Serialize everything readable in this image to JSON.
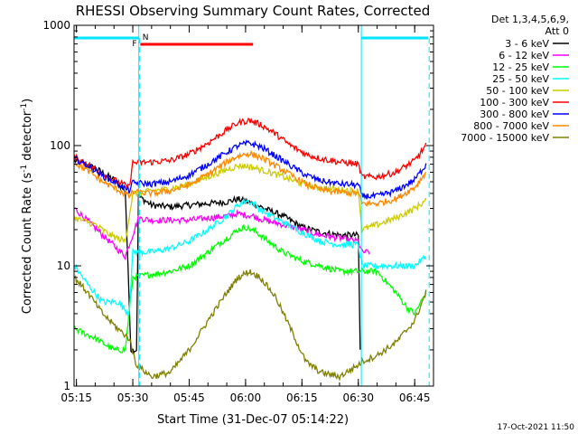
{
  "chart_data": {
    "type": "line",
    "title": "RHESSI Observing Summary Count Rates, Corrected",
    "ylabel_main": "Corrected Count Rate (s",
    "ylabel_exp1": "-1",
    "ylabel_mid": " detector",
    "ylabel_exp2": "-1",
    "ylabel_end": ")",
    "xlabel": "Start Time (31-Dec-07 05:14:22)",
    "timestamp": "17-Oct-2021 11:50",
    "y_scale": "log",
    "ylim": [
      1,
      1000
    ],
    "xlim_minutes": [
      314.37,
      410.0
    ],
    "y_ticks": [
      {
        "value": 1,
        "label": "1"
      },
      {
        "value": 10,
        "label": "10"
      },
      {
        "value": 100,
        "label": "100"
      },
      {
        "value": 1000,
        "label": "1000"
      }
    ],
    "x_ticks": [
      {
        "minute": 315,
        "label": "05:15"
      },
      {
        "minute": 330,
        "label": "05:30"
      },
      {
        "minute": 345,
        "label": "05:45"
      },
      {
        "minute": 360,
        "label": "06:00"
      },
      {
        "minute": 375,
        "label": "06:15"
      },
      {
        "minute": 390,
        "label": "06:30"
      },
      {
        "minute": 405,
        "label": "06:45"
      }
    ],
    "legend_header": [
      "Det 1,3,4,5,6,9,",
      "Att 0"
    ],
    "annotations": {
      "night_label": "N",
      "flare_label": "F",
      "night_before_minutes": [
        314.4,
        331.6
      ],
      "night_after_minutes": [
        390.8,
        408.6
      ],
      "flare_minutes": [
        332.0,
        362.0
      ],
      "cyan_line_minutes": [
        331.6,
        390.8
      ],
      "dashed_line_minutes": [
        331.6,
        408.6
      ]
    },
    "series": [
      {
        "name": "3 - 6 keV",
        "color": "#000000",
        "points": [
          [
            314.5,
            75
          ],
          [
            320,
            65
          ],
          [
            325,
            52
          ],
          [
            328,
            42
          ],
          [
            329.5,
            2
          ],
          [
            331,
            2
          ],
          [
            331.5,
            38
          ],
          [
            335,
            32
          ],
          [
            340,
            31
          ],
          [
            345,
            32
          ],
          [
            350,
            33
          ],
          [
            355,
            34
          ],
          [
            358,
            36
          ],
          [
            362,
            33
          ],
          [
            365,
            30
          ],
          [
            370,
            26
          ],
          [
            375,
            21
          ],
          [
            380,
            19
          ],
          [
            385,
            18
          ],
          [
            390,
            18
          ],
          [
            390.5,
            2
          ]
        ]
      },
      {
        "name": "6 - 12 keV",
        "color": "#ff00ff",
        "points": [
          [
            314.5,
            30
          ],
          [
            328,
            12
          ],
          [
            331.5,
            25
          ],
          [
            335,
            24
          ],
          [
            340,
            24
          ],
          [
            345,
            24
          ],
          [
            350,
            25
          ],
          [
            355,
            26
          ],
          [
            358,
            27
          ],
          [
            362,
            26
          ],
          [
            365,
            24
          ],
          [
            370,
            22
          ],
          [
            375,
            20
          ],
          [
            380,
            18
          ],
          [
            385,
            17
          ],
          [
            390,
            16
          ],
          [
            391,
            13
          ],
          [
            393,
            13
          ]
        ]
      },
      {
        "name": "12 - 25 keV",
        "color": "#00ff00",
        "points": [
          [
            314.5,
            3
          ],
          [
            320,
            2.5
          ],
          [
            325,
            2
          ],
          [
            328,
            2
          ],
          [
            330,
            8
          ],
          [
            335,
            8.5
          ],
          [
            340,
            9
          ],
          [
            345,
            10
          ],
          [
            350,
            13
          ],
          [
            355,
            17
          ],
          [
            358,
            20
          ],
          [
            360,
            21
          ],
          [
            363,
            19
          ],
          [
            366,
            16
          ],
          [
            370,
            13
          ],
          [
            375,
            11
          ],
          [
            380,
            10
          ],
          [
            385,
            9
          ],
          [
            390,
            9
          ],
          [
            395,
            9
          ],
          [
            400,
            6
          ],
          [
            403,
            4.5
          ],
          [
            405,
            4
          ],
          [
            408,
            6
          ]
        ]
      },
      {
        "name": "25 - 50 keV",
        "color": "#00ffff",
        "points": [
          [
            314.5,
            10
          ],
          [
            318,
            7
          ],
          [
            322,
            5
          ],
          [
            326,
            5
          ],
          [
            329,
            4
          ],
          [
            330,
            13
          ],
          [
            335,
            13
          ],
          [
            340,
            14
          ],
          [
            345,
            16
          ],
          [
            350,
            20
          ],
          [
            355,
            26
          ],
          [
            358,
            32
          ],
          [
            360,
            35
          ],
          [
            362,
            33
          ],
          [
            365,
            28
          ],
          [
            370,
            23
          ],
          [
            375,
            19
          ],
          [
            380,
            16
          ],
          [
            385,
            15
          ],
          [
            390,
            15
          ],
          [
            391,
            10
          ],
          [
            395,
            10
          ],
          [
            400,
            10
          ],
          [
            405,
            10
          ],
          [
            408,
            12
          ]
        ]
      },
      {
        "name": "50 - 100 keV",
        "color": "#cccc00",
        "points": [
          [
            314.5,
            25
          ],
          [
            320,
            22
          ],
          [
            324,
            18
          ],
          [
            328,
            16
          ],
          [
            330,
            40
          ],
          [
            335,
            42
          ],
          [
            340,
            44
          ],
          [
            345,
            48
          ],
          [
            350,
            55
          ],
          [
            355,
            63
          ],
          [
            358,
            68
          ],
          [
            361,
            67
          ],
          [
            365,
            62
          ],
          [
            370,
            55
          ],
          [
            375,
            48
          ],
          [
            380,
            44
          ],
          [
            385,
            43
          ],
          [
            390,
            42
          ],
          [
            391,
            20
          ],
          [
            395,
            22
          ],
          [
            400,
            25
          ],
          [
            405,
            30
          ],
          [
            408,
            35
          ]
        ]
      },
      {
        "name": "100 - 300 keV",
        "color": "#ff0000",
        "points": [
          [
            314.5,
            80
          ],
          [
            318,
            70
          ],
          [
            322,
            58
          ],
          [
            326,
            50
          ],
          [
            329,
            45
          ],
          [
            330,
            72
          ],
          [
            335,
            73
          ],
          [
            340,
            75
          ],
          [
            345,
            85
          ],
          [
            350,
            105
          ],
          [
            355,
            135
          ],
          [
            358,
            155
          ],
          [
            361,
            162
          ],
          [
            364,
            150
          ],
          [
            368,
            125
          ],
          [
            372,
            100
          ],
          [
            376,
            85
          ],
          [
            380,
            78
          ],
          [
            385,
            73
          ],
          [
            390,
            70
          ],
          [
            391,
            55
          ],
          [
            395,
            55
          ],
          [
            400,
            60
          ],
          [
            405,
            75
          ],
          [
            408,
            100
          ]
        ]
      },
      {
        "name": "300 - 800 keV",
        "color": "#0000ff",
        "points": [
          [
            314.5,
            78
          ],
          [
            318,
            68
          ],
          [
            322,
            56
          ],
          [
            326,
            48
          ],
          [
            329,
            42
          ],
          [
            330,
            49
          ],
          [
            335,
            48
          ],
          [
            340,
            50
          ],
          [
            345,
            57
          ],
          [
            350,
            70
          ],
          [
            355,
            88
          ],
          [
            358,
            100
          ],
          [
            361,
            105
          ],
          [
            364,
            98
          ],
          [
            368,
            82
          ],
          [
            372,
            68
          ],
          [
            376,
            57
          ],
          [
            380,
            51
          ],
          [
            385,
            48
          ],
          [
            390,
            47
          ],
          [
            391,
            38
          ],
          [
            395,
            38
          ],
          [
            400,
            42
          ],
          [
            405,
            52
          ],
          [
            408,
            70
          ]
        ]
      },
      {
        "name": "800 - 7000 keV",
        "color": "#ff8800",
        "points": [
          [
            314.5,
            72
          ],
          [
            318,
            62
          ],
          [
            322,
            50
          ],
          [
            326,
            43
          ],
          [
            329,
            38
          ],
          [
            330,
            41
          ],
          [
            335,
            40
          ],
          [
            340,
            42
          ],
          [
            345,
            47
          ],
          [
            350,
            58
          ],
          [
            355,
            73
          ],
          [
            358,
            82
          ],
          [
            361,
            86
          ],
          [
            364,
            80
          ],
          [
            368,
            68
          ],
          [
            372,
            57
          ],
          [
            376,
            48
          ],
          [
            380,
            43
          ],
          [
            385,
            41
          ],
          [
            390,
            40
          ],
          [
            391,
            33
          ],
          [
            395,
            33
          ],
          [
            400,
            36
          ],
          [
            405,
            45
          ],
          [
            408,
            60
          ]
        ]
      },
      {
        "name": "7000 - 15000 keV",
        "color": "#808000",
        "points": [
          [
            314.5,
            8
          ],
          [
            318,
            6
          ],
          [
            322,
            4
          ],
          [
            326,
            3
          ],
          [
            329,
            2.5
          ],
          [
            331,
            1.5
          ],
          [
            335,
            1.2
          ],
          [
            340,
            1.3
          ],
          [
            345,
            2
          ],
          [
            350,
            3.5
          ],
          [
            355,
            6
          ],
          [
            358,
            8
          ],
          [
            361,
            9
          ],
          [
            364,
            8
          ],
          [
            368,
            5.5
          ],
          [
            372,
            3
          ],
          [
            376,
            1.6
          ],
          [
            380,
            1.3
          ],
          [
            385,
            1.2
          ],
          [
            390,
            1.5
          ],
          [
            391,
            1.6
          ],
          [
            395,
            1.8
          ],
          [
            400,
            2.3
          ],
          [
            405,
            3.5
          ],
          [
            408,
            6
          ]
        ]
      }
    ]
  }
}
